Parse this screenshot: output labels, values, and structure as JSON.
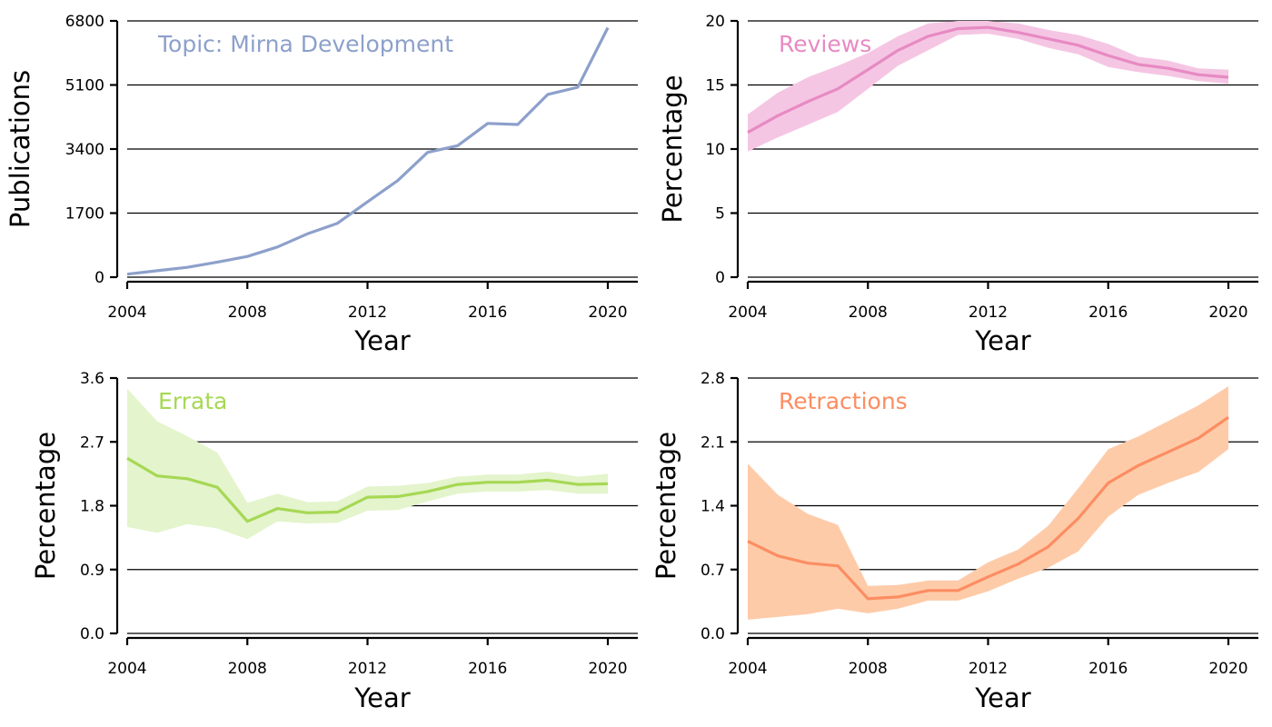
{
  "chart_data": [
    {
      "type": "line",
      "panel_label": "Topic: Mirna Development",
      "xlabel": "Year",
      "ylabel": "Publications",
      "xlim": [
        2004,
        2021
      ],
      "ylim": [
        0,
        6800
      ],
      "xticks": [
        2004,
        2008,
        2012,
        2016,
        2020
      ],
      "yticks": [
        "0",
        "1700",
        "3400",
        "5100",
        "6800"
      ],
      "grid": "horizontal",
      "color": "#8DA0CB",
      "band_color": "",
      "x": [
        2004,
        2005,
        2006,
        2007,
        2008,
        2009,
        2010,
        2011,
        2012,
        2013,
        2014,
        2015,
        2016,
        2017,
        2018,
        2019,
        2020
      ],
      "y": [
        80,
        170,
        260,
        400,
        550,
        800,
        1150,
        1430,
        2000,
        2560,
        3310,
        3490,
        4080,
        4050,
        4850,
        5040,
        6620
      ]
    },
    {
      "type": "line",
      "panel_label": "Reviews",
      "xlabel": "Year",
      "ylabel": "Percentage",
      "xlim": [
        2004,
        2021
      ],
      "ylim": [
        0,
        20
      ],
      "xticks": [
        2004,
        2008,
        2012,
        2016,
        2020
      ],
      "yticks": [
        "0",
        "5",
        "10",
        "15",
        "20"
      ],
      "grid": "horizontal",
      "color": "#E78AC3",
      "band_color": "#F5C6E3",
      "x": [
        2004,
        2005,
        2006,
        2007,
        2008,
        2009,
        2010,
        2011,
        2012,
        2013,
        2014,
        2015,
        2016,
        2017,
        2018,
        2019,
        2020
      ],
      "y": [
        11.3,
        12.6,
        13.7,
        14.7,
        16.2,
        17.7,
        18.8,
        19.4,
        19.5,
        19.1,
        18.6,
        18.1,
        17.3,
        16.6,
        16.3,
        15.8,
        15.6
      ],
      "lower": [
        9.8,
        10.9,
        11.9,
        12.9,
        14.7,
        16.5,
        17.7,
        18.9,
        19.0,
        18.6,
        17.9,
        17.4,
        16.4,
        16.0,
        15.7,
        15.3,
        15.1
      ],
      "upper": [
        12.7,
        14.4,
        15.6,
        16.5,
        17.5,
        18.8,
        19.8,
        20.0,
        20.0,
        19.8,
        19.3,
        18.9,
        18.2,
        17.2,
        16.9,
        16.3,
        16.2
      ]
    },
    {
      "type": "line",
      "panel_label": "Errata",
      "xlabel": "Year",
      "ylabel": "Percentage",
      "xlim": [
        2004,
        2021
      ],
      "ylim": [
        0,
        3.6
      ],
      "xticks": [
        2004,
        2008,
        2012,
        2016,
        2020
      ],
      "yticks": [
        "0.0",
        "0.9",
        "1.8",
        "2.7",
        "3.6"
      ],
      "grid": "horizontal",
      "color": "#A6D854",
      "band_color": "#E4F4CC",
      "x": [
        2004,
        2005,
        2006,
        2007,
        2008,
        2009,
        2010,
        2011,
        2012,
        2013,
        2014,
        2015,
        2016,
        2017,
        2018,
        2019,
        2020
      ],
      "y": [
        2.47,
        2.22,
        2.18,
        2.06,
        1.58,
        1.76,
        1.7,
        1.71,
        1.92,
        1.93,
        2.0,
        2.1,
        2.13,
        2.13,
        2.16,
        2.1,
        2.11
      ],
      "lower": [
        1.5,
        1.42,
        1.54,
        1.48,
        1.33,
        1.58,
        1.55,
        1.56,
        1.73,
        1.74,
        1.86,
        1.97,
        2.0,
        2.0,
        2.02,
        1.97,
        1.97
      ],
      "upper": [
        3.45,
        2.99,
        2.78,
        2.55,
        1.84,
        1.97,
        1.85,
        1.86,
        2.07,
        2.08,
        2.12,
        2.21,
        2.24,
        2.24,
        2.28,
        2.21,
        2.25
      ]
    },
    {
      "type": "line",
      "panel_label": "Retractions",
      "xlabel": "Year",
      "ylabel": "Percentage",
      "xlim": [
        2004,
        2021
      ],
      "ylim": [
        0,
        2.8
      ],
      "xticks": [
        2004,
        2008,
        2012,
        2016,
        2020
      ],
      "yticks": [
        "0.0",
        "0.7",
        "1.4",
        "2.1",
        "2.8"
      ],
      "grid": "horizontal",
      "color": "#FC8D62",
      "band_color": "#FECBA9",
      "x": [
        2004,
        2005,
        2006,
        2007,
        2008,
        2009,
        2010,
        2011,
        2012,
        2013,
        2014,
        2015,
        2016,
        2017,
        2018,
        2019,
        2020
      ],
      "y": [
        1.01,
        0.85,
        0.77,
        0.74,
        0.38,
        0.4,
        0.47,
        0.47,
        0.62,
        0.76,
        0.95,
        1.26,
        1.65,
        1.84,
        1.99,
        2.14,
        2.37
      ],
      "lower": [
        0.15,
        0.18,
        0.21,
        0.27,
        0.22,
        0.27,
        0.36,
        0.36,
        0.46,
        0.6,
        0.72,
        0.9,
        1.28,
        1.52,
        1.65,
        1.77,
        2.02
      ],
      "upper": [
        1.86,
        1.52,
        1.31,
        1.19,
        0.52,
        0.53,
        0.58,
        0.58,
        0.78,
        0.92,
        1.18,
        1.59,
        2.02,
        2.16,
        2.33,
        2.5,
        2.71
      ]
    }
  ]
}
